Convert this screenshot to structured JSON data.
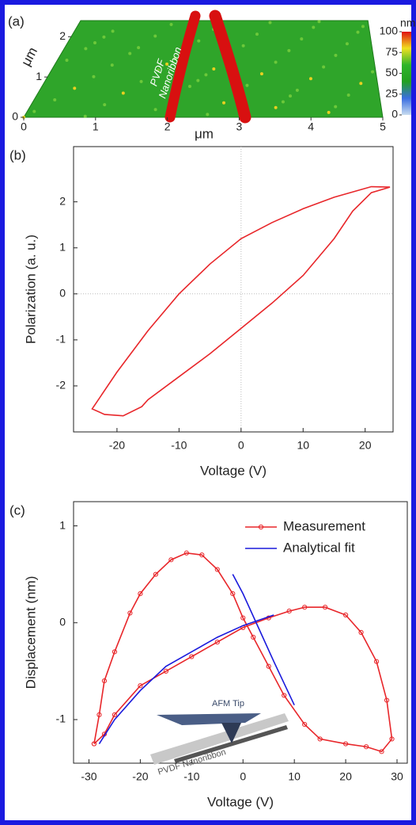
{
  "chart_data": [
    {
      "type": "surface",
      "panel_label": "(a)",
      "xlabel": "μm",
      "ylabel": "μm",
      "annotation": [
        "PVDF",
        "Nanoribbon"
      ],
      "xlim": [
        0,
        5
      ],
      "xticks": [
        0,
        1,
        2,
        3,
        4,
        5
      ],
      "ylim": [
        0,
        2.4
      ],
      "yticks": [
        0,
        1,
        2
      ],
      "colorbar_label": "nm",
      "clim": [
        0,
        100
      ],
      "cticks": [
        0,
        25,
        50,
        75,
        100
      ],
      "colormap": [
        "#c8dcf0",
        "#3a6ee0",
        "#22a020",
        "#2fb52a",
        "#f0e020",
        "#e01010"
      ]
    },
    {
      "type": "line",
      "panel_label": "(b)",
      "xlabel": "Voltage (V)",
      "ylabel": "Polarization (a. u.)",
      "xlim": [
        -27,
        24.5
      ],
      "xticks": [
        -20,
        -10,
        0,
        10,
        20
      ],
      "ylim": [
        -3,
        3.2
      ],
      "yticks": [
        -2,
        -1,
        0,
        1,
        2
      ],
      "zero_lines": true,
      "series": [
        {
          "name": null,
          "color": "#e8262a",
          "marker": false,
          "x": [
            24,
            21,
            15,
            10,
            5,
            0,
            -5,
            -10,
            -15,
            -20,
            -24,
            -22,
            -19,
            -16,
            -15,
            -10,
            -5,
            0,
            5,
            10,
            15,
            18,
            21,
            24
          ],
          "values": [
            2.32,
            2.33,
            2.1,
            1.85,
            1.55,
            1.2,
            0.65,
            0,
            -0.8,
            -1.7,
            -2.5,
            -2.62,
            -2.65,
            -2.45,
            -2.3,
            -1.8,
            -1.3,
            -0.75,
            -0.2,
            0.4,
            1.2,
            1.8,
            2.2,
            2.32
          ]
        }
      ]
    },
    {
      "type": "line",
      "panel_label": "(c)",
      "xlabel": "Voltage (V)",
      "ylabel": "Displacement (nm)",
      "xlim": [
        -33,
        32
      ],
      "xticks": [
        -30,
        -20,
        -10,
        0,
        10,
        20,
        30
      ],
      "ylim": [
        -1.45,
        1.25
      ],
      "yticks": [
        -1,
        0,
        1
      ],
      "legend": "upper right",
      "annotations": [
        "AFM Tip",
        "PVDF Nanoribbon"
      ],
      "series": [
        {
          "name": "Measurement",
          "color": "#e8262a",
          "marker": true,
          "x": [
            -29,
            -28,
            -27,
            -25,
            -22,
            -20,
            -17,
            -14,
            -11,
            -8,
            -5,
            -2,
            0,
            2,
            5,
            8,
            12,
            15,
            20,
            24,
            27,
            29,
            28,
            26,
            23,
            20,
            16,
            12,
            9,
            5,
            0,
            -5,
            -10,
            -15,
            -20,
            -25,
            -27,
            -29
          ],
          "values": [
            -1.25,
            -0.95,
            -0.6,
            -0.3,
            0.1,
            0.3,
            0.5,
            0.65,
            0.72,
            0.7,
            0.55,
            0.3,
            0.05,
            -0.15,
            -0.45,
            -0.75,
            -1.05,
            -1.2,
            -1.25,
            -1.28,
            -1.33,
            -1.2,
            -0.8,
            -0.4,
            -0.1,
            0.08,
            0.16,
            0.16,
            0.12,
            0.05,
            -0.05,
            -0.2,
            -0.35,
            -0.5,
            -0.65,
            -0.95,
            -1.15,
            -1.25
          ]
        },
        {
          "name": "Analytical fit",
          "color": "#1a1adc",
          "marker": false,
          "x": [
            -28,
            -25,
            -20,
            -15,
            -10,
            -5,
            0,
            6,
            null,
            -2,
            0,
            3,
            6,
            10
          ],
          "values": [
            -1.25,
            -1.0,
            -0.7,
            -0.45,
            -0.3,
            -0.15,
            -0.03,
            0.08,
            null,
            0.5,
            0.3,
            -0.05,
            -0.4,
            -0.85
          ]
        }
      ]
    }
  ]
}
